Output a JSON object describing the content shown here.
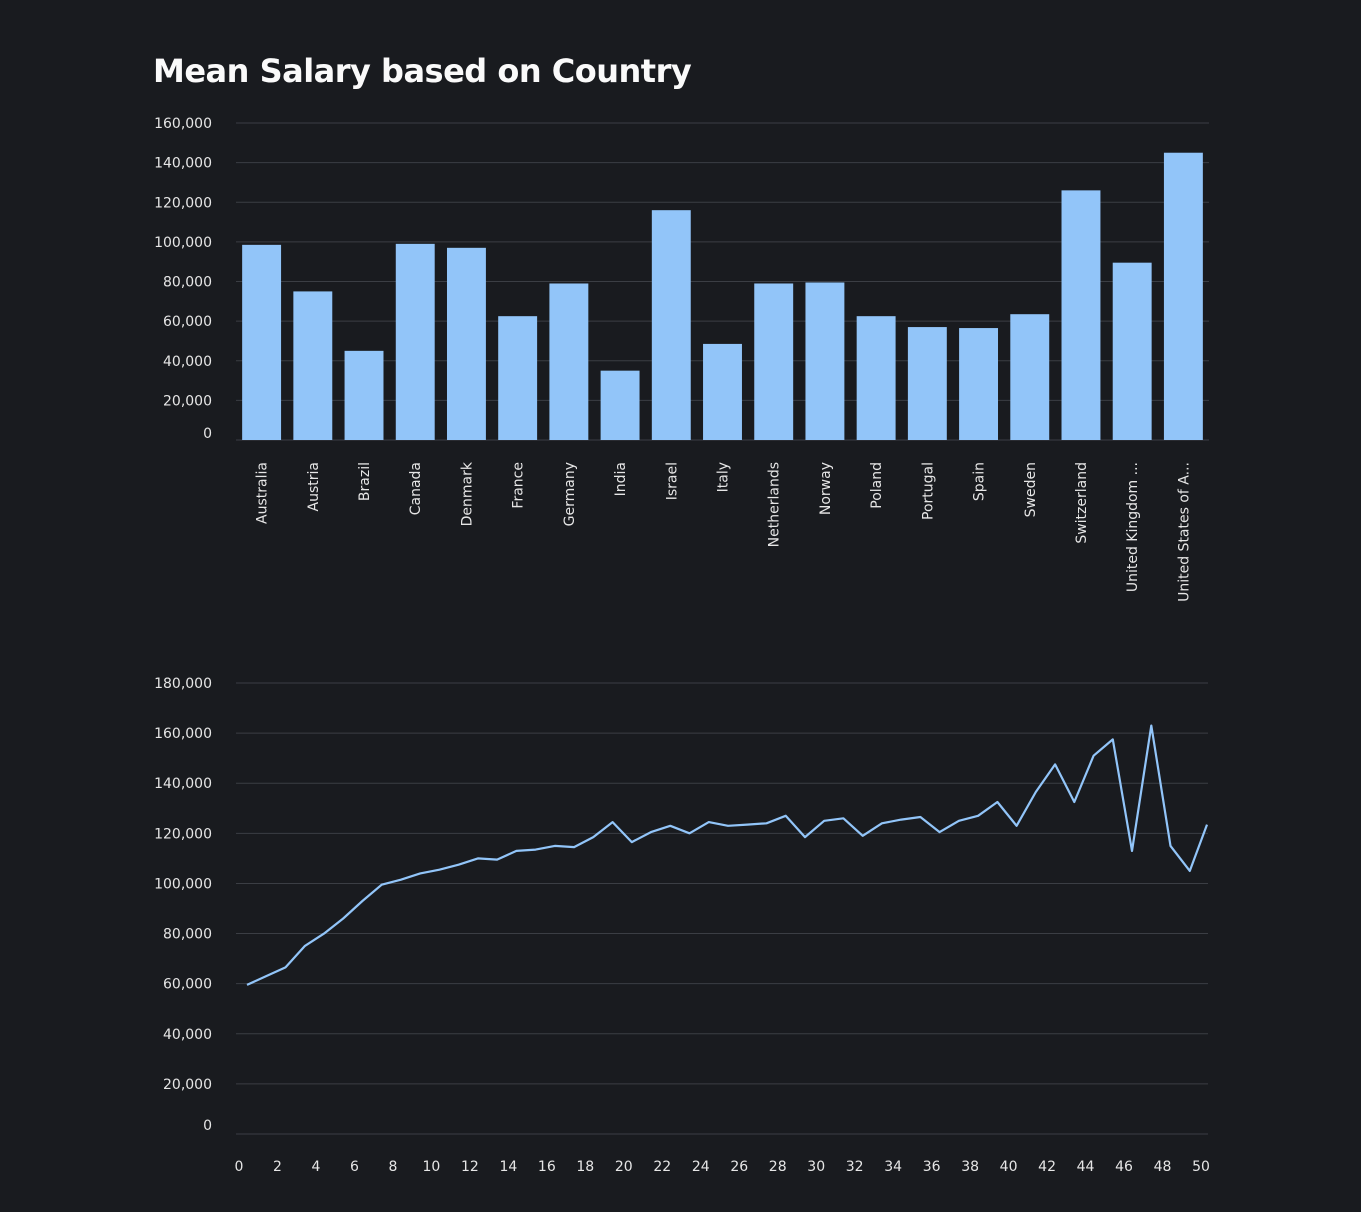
{
  "page": {
    "title": "Mean Salary based on Country"
  },
  "colors": {
    "background": "#191b1f",
    "series": "#92c5f9",
    "grid": "#3b3e44",
    "text": "#fafafa"
  },
  "chart_data": [
    {
      "type": "bar",
      "title": "Mean Salary based on Country",
      "xlabel": "",
      "ylabel": "",
      "ylim": [
        0,
        160000
      ],
      "y_ticks": [
        0,
        20000,
        40000,
        60000,
        80000,
        100000,
        120000,
        140000,
        160000
      ],
      "y_tick_labels": [
        "0",
        "20,000",
        "40,000",
        "60,000",
        "80,000",
        "100,000",
        "120,000",
        "140,000",
        "160,000"
      ],
      "grid": true,
      "categories": [
        "Australia",
        "Austria",
        "Brazil",
        "Canada",
        "Denmark",
        "France",
        "Germany",
        "India",
        "Israel",
        "Italy",
        "Netherlands",
        "Norway",
        "Poland",
        "Portugal",
        "Spain",
        "Sweden",
        "Switzerland",
        "United Kingdom ...",
        "United States of A..."
      ],
      "values": [
        98500,
        75000,
        45000,
        99000,
        97000,
        62500,
        79000,
        35000,
        116000,
        48500,
        79000,
        79500,
        62500,
        57000,
        56500,
        63500,
        126000,
        89500,
        145000
      ]
    },
    {
      "type": "line",
      "title": "",
      "xlabel": "",
      "ylabel": "",
      "xlim": [
        0,
        50
      ],
      "ylim": [
        0,
        180000
      ],
      "x_ticks": [
        0,
        2,
        4,
        6,
        8,
        10,
        12,
        14,
        16,
        18,
        20,
        22,
        24,
        26,
        28,
        30,
        32,
        34,
        36,
        38,
        40,
        42,
        44,
        46,
        48,
        50
      ],
      "y_ticks": [
        0,
        20000,
        40000,
        60000,
        80000,
        100000,
        120000,
        140000,
        160000,
        180000
      ],
      "y_tick_labels": [
        "0",
        "20,000",
        "40,000",
        "60,000",
        "80,000",
        "100,000",
        "120,000",
        "140,000",
        "160,000",
        "180,000"
      ],
      "grid": true,
      "x": [
        0,
        1,
        2,
        3,
        4,
        5,
        6,
        7,
        8,
        9,
        10,
        11,
        12,
        13,
        14,
        15,
        16,
        17,
        18,
        19,
        20,
        21,
        22,
        23,
        24,
        25,
        26,
        27,
        28,
        29,
        30,
        31,
        32,
        33,
        34,
        35,
        36,
        37,
        38,
        39,
        40,
        41,
        42,
        43,
        44,
        45,
        46,
        47,
        48,
        49,
        50
      ],
      "y": [
        59500,
        63000,
        66500,
        75000,
        80000,
        86000,
        93000,
        99500,
        101500,
        104000,
        105500,
        107500,
        110000,
        109500,
        113000,
        113500,
        115000,
        114500,
        118500,
        124500,
        116500,
        120500,
        123000,
        120000,
        124500,
        123000,
        123500,
        124000,
        127000,
        118500,
        125000,
        126000,
        119000,
        124000,
        125500,
        126500,
        120500,
        125000,
        127000,
        132500,
        123000,
        136500,
        147500,
        132500,
        151000,
        157500,
        113000,
        163000,
        115000,
        105000,
        123500
      ]
    }
  ]
}
